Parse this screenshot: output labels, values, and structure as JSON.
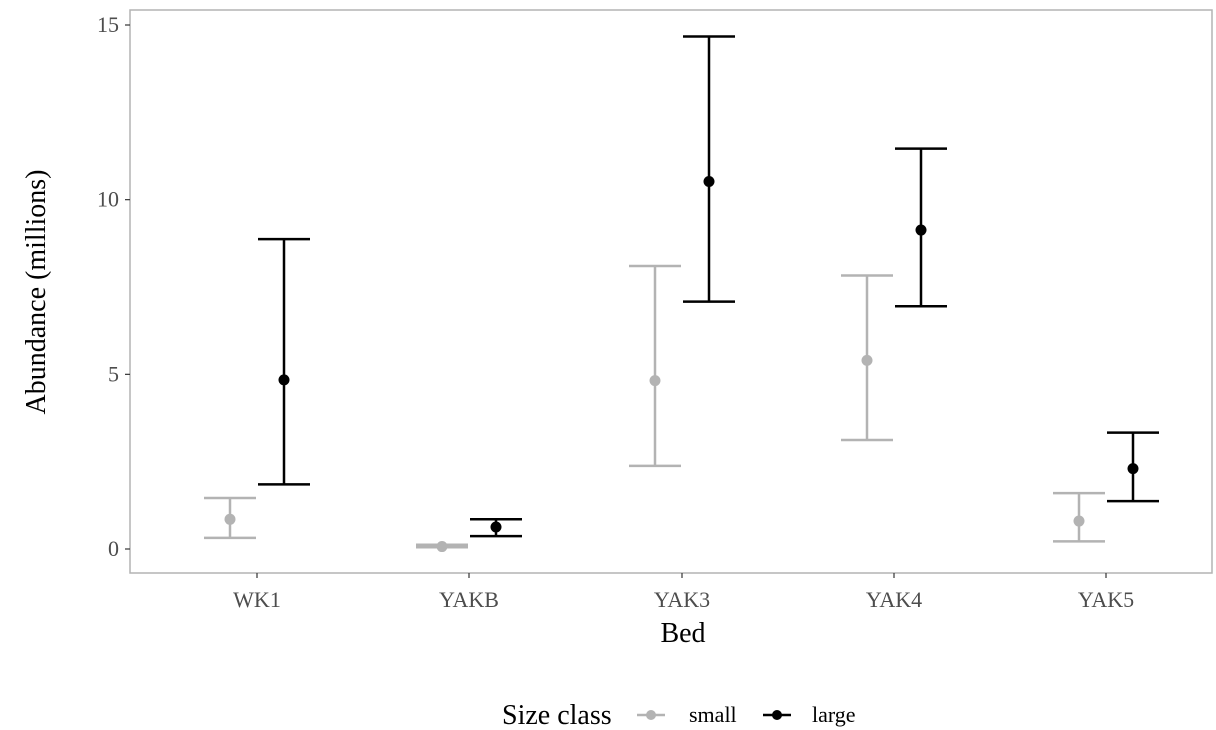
{
  "chart_data": {
    "type": "scatter",
    "title": "",
    "xlabel": "Bed",
    "ylabel": "Abundance (millions)",
    "categories": [
      "WK1",
      "YAKB",
      "YAK3",
      "YAK4",
      "YAK5"
    ],
    "ylim": [
      -0.7,
      15.4
    ],
    "yticks": [
      0,
      5,
      10,
      15
    ],
    "ytick_labels": [
      "0",
      "5",
      "10",
      "15"
    ],
    "grid": false,
    "legend_title": "Size class",
    "legend_position": "bottom",
    "series": [
      {
        "name": "small",
        "color": "#b3b3b3",
        "values": [
          0.85,
          0.07,
          4.82,
          5.4,
          0.8
        ],
        "lower": [
          0.32,
          0.05,
          2.38,
          3.12,
          0.22
        ],
        "upper": [
          1.46,
          0.12,
          8.1,
          7.83,
          1.6
        ]
      },
      {
        "name": "large",
        "color": "#000000",
        "values": [
          4.84,
          0.63,
          10.52,
          9.13,
          2.3
        ],
        "lower": [
          1.85,
          0.37,
          7.08,
          6.95,
          1.37
        ],
        "upper": [
          8.87,
          0.85,
          14.67,
          11.46,
          3.33
        ]
      }
    ]
  }
}
